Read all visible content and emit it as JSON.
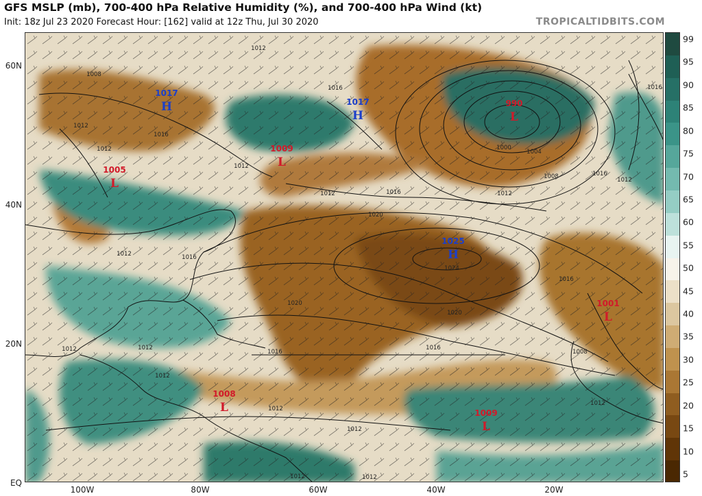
{
  "title": "GFS MSLP (mb), 700-400 hPa Relative Humidity (%), and 700-400 hPa Wind (kt)",
  "subtitle": "Init: 18z Jul 23 2020   Forecast Hour: [162]   valid at 12z Thu, Jul 30 2020",
  "brand": "TROPICALTIDBITS.COM",
  "lat_labels": [
    "60N",
    "40N",
    "20N",
    "EQ"
  ],
  "lon_labels": [
    "100W",
    "80W",
    "60W",
    "40W",
    "20W"
  ],
  "colorbar": {
    "labels": [
      "99",
      "95",
      "90",
      "85",
      "80",
      "75",
      "70",
      "65",
      "60",
      "55",
      "50",
      "45",
      "40",
      "35",
      "30",
      "25",
      "20",
      "15",
      "10",
      "5"
    ],
    "colors": [
      "#1f4a40",
      "#1f5f55",
      "#267066",
      "#2d8277",
      "#3b9488",
      "#56a79b",
      "#74baaf",
      "#95cdc4",
      "#bde1db",
      "#e8f4f1",
      "#f7f3ea",
      "#ece0c8",
      "#dcc7a0",
      "#cfac74",
      "#bf924e",
      "#aa7734",
      "#8f5d20",
      "#784812",
      "#603507",
      "#4a2802"
    ]
  },
  "pressure_centers": [
    {
      "type": "H",
      "value": "1017",
      "color": "#1c3fc9"
    },
    {
      "type": "H",
      "value": "1017",
      "color": "#1c3fc9"
    },
    {
      "type": "L",
      "value": "1009",
      "color": "#d11a2a"
    },
    {
      "type": "L",
      "value": "1005",
      "color": "#d11a2a"
    },
    {
      "type": "L",
      "value": "990",
      "color": "#d11a2a"
    },
    {
      "type": "H",
      "value": "1025",
      "color": "#1c3fc9"
    },
    {
      "type": "L",
      "value": "1001",
      "color": "#d11a2a"
    },
    {
      "type": "L",
      "value": "1008",
      "color": "#d11a2a"
    },
    {
      "type": "L",
      "value": "1009",
      "color": "#d11a2a"
    }
  ],
  "isobar_labels": [
    "1012",
    "1008",
    "1016",
    "1016",
    "1012",
    "1012",
    "1016",
    "1020",
    "1016",
    "1012",
    "1000",
    "1004",
    "1008",
    "1012",
    "1016",
    "1016",
    "1012",
    "1012",
    "1016",
    "1020",
    "1024",
    "1020",
    "1016",
    "1016",
    "1008",
    "1012",
    "1012",
    "1012",
    "1012",
    "1012",
    "1012",
    "1012",
    "1012",
    "1012"
  ]
}
